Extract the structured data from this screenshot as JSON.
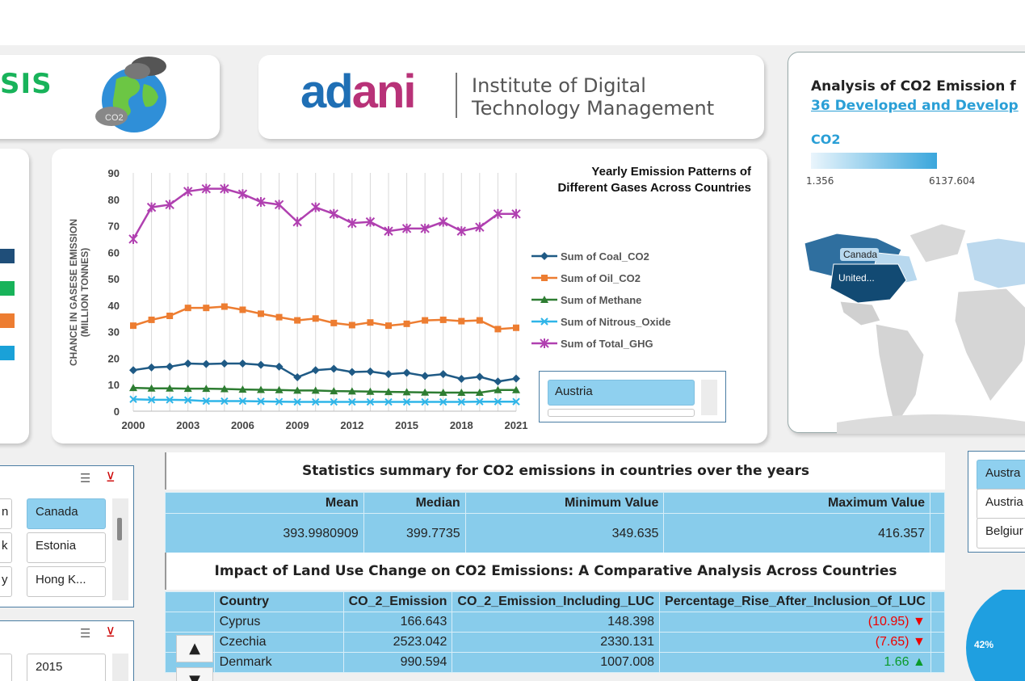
{
  "header": {
    "title_partial": "SIS",
    "logo_word_left": "ad",
    "logo_word_right": "ani",
    "logo_line1": "Institute of Digital",
    "logo_line2": "Technology Management",
    "globe_label": "CO2"
  },
  "colors": {
    "accent_green": "#18b35a",
    "accent_blue": "#2a9fd6",
    "table_blue": "#88cceb",
    "coal": "#1f5a85",
    "oil": "#ed7d31",
    "methane": "#2e7d32",
    "nitrous": "#2fb5e8",
    "total": "#b040b0"
  },
  "left_panel": {
    "legend_swatch_colors": [
      "#1f4e79",
      "#18b35a",
      "#ed7d31",
      "#1aa1d8"
    ]
  },
  "chart_data": {
    "type": "line",
    "title": "Yearly Emission Patterns of Different Gases Across Countries",
    "ylabel": "CHANCE IN GASESE EMISSION (MILLION TONNES)",
    "xlabel": "",
    "ylim": [
      0,
      90
    ],
    "yticks": [
      0,
      10,
      20,
      30,
      40,
      50,
      60,
      70,
      80,
      90
    ],
    "x": [
      2000,
      2001,
      2002,
      2003,
      2004,
      2005,
      2006,
      2007,
      2008,
      2009,
      2010,
      2011,
      2012,
      2013,
      2014,
      2015,
      2016,
      2017,
      2018,
      2019,
      2020,
      2021
    ],
    "xtick_labels": [
      "2000",
      "2003",
      "2006",
      "2009",
      "2012",
      "2015",
      "2018",
      "2021"
    ],
    "legend_position": "right",
    "series": [
      {
        "name": "Sum of Coal_CO2",
        "color": "#1f5a85",
        "marker": "diamond",
        "values": [
          15.5,
          16.5,
          16.8,
          18,
          17.8,
          18,
          18,
          17.5,
          16.8,
          12.8,
          15.5,
          16,
          14.8,
          15,
          14,
          14.5,
          13.3,
          14,
          12.2,
          13,
          11.2,
          12.3
        ]
      },
      {
        "name": "Sum of Oil_CO2",
        "color": "#ed7d31",
        "marker": "square",
        "values": [
          32.3,
          34.5,
          36,
          39,
          39,
          39.5,
          38.3,
          36.8,
          35.5,
          34.3,
          35,
          33.3,
          32.5,
          33.5,
          32.3,
          33,
          34.3,
          34.5,
          34,
          34.3,
          31,
          31.5
        ]
      },
      {
        "name": "Sum of Methane",
        "color": "#2e7d32",
        "marker": "triangle",
        "values": [
          8.8,
          8.6,
          8.6,
          8.5,
          8.5,
          8.4,
          8.2,
          8.1,
          8,
          7.8,
          7.8,
          7.6,
          7.5,
          7.4,
          7.3,
          7.2,
          7.1,
          7,
          7,
          7,
          8,
          8
        ]
      },
      {
        "name": "Sum of Nitrous_Oxide",
        "color": "#2fb5e8",
        "marker": "x",
        "values": [
          4.5,
          4.3,
          4.3,
          4.2,
          3.8,
          3.8,
          3.8,
          3.7,
          3.6,
          3.5,
          3.5,
          3.5,
          3.5,
          3.5,
          3.5,
          3.5,
          3.5,
          3.5,
          3.5,
          3.6,
          3.6,
          3.6
        ]
      },
      {
        "name": "Sum of Total_GHG",
        "color": "#b040b0",
        "marker": "star",
        "values": [
          65,
          77,
          78,
          83,
          84,
          84,
          82,
          79,
          78,
          71.5,
          77,
          74.5,
          71,
          71.5,
          68,
          69,
          69,
          71.5,
          68,
          69.5,
          74.5,
          74.5
        ]
      }
    ]
  },
  "chart_slicer": {
    "selected": "Austria"
  },
  "map": {
    "title": "Analysis of CO2 Emission f",
    "subtitle": "36 Developed and Develop",
    "legend_title": "CO2",
    "legend_min": "1.356",
    "legend_max": "6137.604",
    "labels": [
      "Canada",
      "United..."
    ]
  },
  "country_slicer": {
    "items": [
      "n",
      "Canada",
      "k",
      "Estonia",
      "y",
      "Hong K..."
    ],
    "selected": "Canada"
  },
  "year_slicer": {
    "items": [
      "2015"
    ]
  },
  "stats": {
    "title": "Statistics summary for CO2 emissions in countries over the years",
    "headers": [
      "Mean",
      "Median",
      "Minimum Value",
      "Maximum Value"
    ],
    "values": [
      "393.9980909",
      "399.7735",
      "349.635",
      "416.357"
    ]
  },
  "luc": {
    "title": "Impact of Land Use Change on CO2 Emissions: A Comparative Analysis Across Countries",
    "headers": [
      "Country",
      "CO_2_Emission",
      "CO_2_Emission_Including_LUC",
      "Percentage_Rise_After_Inclusion_Of_LUC"
    ],
    "rows": [
      {
        "country": "Cyprus",
        "emission": "166.643",
        "with_luc": "148.398",
        "pct": "(10.95)",
        "dir": "down"
      },
      {
        "country": "Czechia",
        "emission": "2523.042",
        "with_luc": "2330.131",
        "pct": "(7.65)",
        "dir": "down"
      },
      {
        "country": "Denmark",
        "emission": "990.594",
        "with_luc": "1007.008",
        "pct": "1.66",
        "dir": "up"
      }
    ],
    "up_arrow": "▲",
    "down_arrow": "▼"
  },
  "right_slicer": {
    "items": [
      "Austra",
      "Austria",
      "Belgiur"
    ],
    "selected": "Austra"
  },
  "pie": {
    "label": "42%"
  }
}
